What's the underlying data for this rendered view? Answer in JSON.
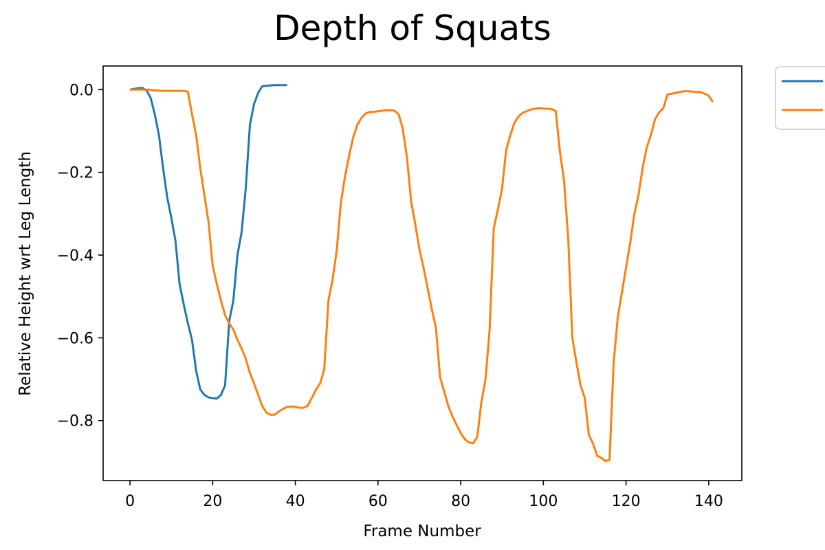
{
  "chart_data": {
    "type": "line",
    "title": "Depth of Squats",
    "xlabel": "Frame Number",
    "ylabel": "Relative Height wrt Leg Length",
    "xlim": [
      -6.5,
      148
    ],
    "ylim": [
      -0.945,
      0.057
    ],
    "xticks": [
      0,
      20,
      40,
      60,
      80,
      100,
      120,
      140
    ],
    "yticks": [
      0.0,
      -0.2,
      -0.4,
      -0.6,
      -0.8
    ],
    "ytick_labels": [
      "0.0",
      "−0.2",
      "−0.4",
      "−0.6",
      "−0.8"
    ],
    "grid": false,
    "legend": "outside-top-right",
    "series": [
      {
        "color": "#1f77b4",
        "points": [
          [
            0,
            0.0
          ],
          [
            1,
            0.002
          ],
          [
            2,
            0.003
          ],
          [
            3,
            0.004
          ],
          [
            4,
            -0.002
          ],
          [
            5,
            -0.02
          ],
          [
            6,
            -0.06
          ],
          [
            7,
            -0.11
          ],
          [
            8,
            -0.19
          ],
          [
            9,
            -0.26
          ],
          [
            10,
            -0.31
          ],
          [
            11,
            -0.365
          ],
          [
            12,
            -0.47
          ],
          [
            13,
            -0.52
          ],
          [
            14,
            -0.565
          ],
          [
            15,
            -0.605
          ],
          [
            16,
            -0.68
          ],
          [
            17,
            -0.725
          ],
          [
            18,
            -0.738
          ],
          [
            19,
            -0.744
          ],
          [
            20,
            -0.746
          ],
          [
            21,
            -0.747
          ],
          [
            22,
            -0.738
          ],
          [
            23,
            -0.715
          ],
          [
            24,
            -0.56
          ],
          [
            25,
            -0.51
          ],
          [
            26,
            -0.4
          ],
          [
            27,
            -0.345
          ],
          [
            28,
            -0.24
          ],
          [
            29,
            -0.085
          ],
          [
            30,
            -0.035
          ],
          [
            31,
            -0.008
          ],
          [
            32,
            0.008
          ],
          [
            33,
            0.009
          ],
          [
            34,
            0.01
          ],
          [
            35,
            0.011
          ],
          [
            36,
            0.011
          ],
          [
            37,
            0.011
          ],
          [
            38,
            0.011
          ]
        ]
      },
      {
        "color": "#ff7f0e",
        "points": [
          [
            0,
            0.0
          ],
          [
            2,
            0.0
          ],
          [
            4,
            0.0
          ],
          [
            6,
            -0.002
          ],
          [
            8,
            -0.003
          ],
          [
            10,
            -0.003
          ],
          [
            12,
            -0.003
          ],
          [
            13,
            -0.003
          ],
          [
            14,
            -0.005
          ],
          [
            15,
            -0.06
          ],
          [
            16,
            -0.11
          ],
          [
            17,
            -0.19
          ],
          [
            18,
            -0.255
          ],
          [
            19,
            -0.32
          ],
          [
            20,
            -0.425
          ],
          [
            21,
            -0.47
          ],
          [
            22,
            -0.51
          ],
          [
            23,
            -0.545
          ],
          [
            24,
            -0.565
          ],
          [
            25,
            -0.58
          ],
          [
            26,
            -0.605
          ],
          [
            27,
            -0.625
          ],
          [
            28,
            -0.65
          ],
          [
            29,
            -0.685
          ],
          [
            30,
            -0.71
          ],
          [
            31,
            -0.738
          ],
          [
            32,
            -0.765
          ],
          [
            33,
            -0.781
          ],
          [
            34,
            -0.786
          ],
          [
            35,
            -0.786
          ],
          [
            36,
            -0.778
          ],
          [
            37,
            -0.772
          ],
          [
            38,
            -0.767
          ],
          [
            39,
            -0.766
          ],
          [
            40,
            -0.767
          ],
          [
            41,
            -0.769
          ],
          [
            42,
            -0.769
          ],
          [
            43,
            -0.764
          ],
          [
            44,
            -0.745
          ],
          [
            45,
            -0.725
          ],
          [
            46,
            -0.71
          ],
          [
            47,
            -0.675
          ],
          [
            48,
            -0.51
          ],
          [
            49,
            -0.46
          ],
          [
            50,
            -0.39
          ],
          [
            51,
            -0.275
          ],
          [
            52,
            -0.21
          ],
          [
            53,
            -0.16
          ],
          [
            54,
            -0.115
          ],
          [
            55,
            -0.085
          ],
          [
            56,
            -0.068
          ],
          [
            57,
            -0.058
          ],
          [
            58,
            -0.054
          ],
          [
            59,
            -0.054
          ],
          [
            60,
            -0.052
          ],
          [
            61,
            -0.051
          ],
          [
            62,
            -0.05
          ],
          [
            63,
            -0.05
          ],
          [
            64,
            -0.051
          ],
          [
            65,
            -0.06
          ],
          [
            66,
            -0.095
          ],
          [
            67,
            -0.165
          ],
          [
            68,
            -0.27
          ],
          [
            69,
            -0.325
          ],
          [
            70,
            -0.385
          ],
          [
            71,
            -0.43
          ],
          [
            72,
            -0.48
          ],
          [
            73,
            -0.53
          ],
          [
            74,
            -0.575
          ],
          [
            75,
            -0.695
          ],
          [
            76,
            -0.73
          ],
          [
            77,
            -0.765
          ],
          [
            78,
            -0.79
          ],
          [
            79,
            -0.81
          ],
          [
            80,
            -0.83
          ],
          [
            81,
            -0.845
          ],
          [
            82,
            -0.853
          ],
          [
            83,
            -0.855
          ],
          [
            84,
            -0.84
          ],
          [
            85,
            -0.755
          ],
          [
            86,
            -0.7
          ],
          [
            87,
            -0.58
          ],
          [
            88,
            -0.335
          ],
          [
            89,
            -0.29
          ],
          [
            90,
            -0.24
          ],
          [
            91,
            -0.145
          ],
          [
            92,
            -0.11
          ],
          [
            93,
            -0.08
          ],
          [
            94,
            -0.065
          ],
          [
            95,
            -0.056
          ],
          [
            96,
            -0.052
          ],
          [
            97,
            -0.048
          ],
          [
            98,
            -0.046
          ],
          [
            99,
            -0.045
          ],
          [
            100,
            -0.046
          ],
          [
            101,
            -0.046
          ],
          [
            102,
            -0.047
          ],
          [
            103,
            -0.052
          ],
          [
            104,
            -0.15
          ],
          [
            105,
            -0.22
          ],
          [
            106,
            -0.36
          ],
          [
            107,
            -0.6
          ],
          [
            108,
            -0.66
          ],
          [
            109,
            -0.715
          ],
          [
            110,
            -0.745
          ],
          [
            111,
            -0.835
          ],
          [
            112,
            -0.855
          ],
          [
            113,
            -0.885
          ],
          [
            114,
            -0.89
          ],
          [
            115,
            -0.898
          ],
          [
            116,
            -0.895
          ],
          [
            117,
            -0.66
          ],
          [
            118,
            -0.55
          ],
          [
            119,
            -0.49
          ],
          [
            120,
            -0.43
          ],
          [
            121,
            -0.37
          ],
          [
            122,
            -0.3
          ],
          [
            123,
            -0.255
          ],
          [
            124,
            -0.19
          ],
          [
            125,
            -0.14
          ],
          [
            126,
            -0.11
          ],
          [
            127,
            -0.072
          ],
          [
            128,
            -0.055
          ],
          [
            129,
            -0.045
          ],
          [
            130,
            -0.012
          ],
          [
            131,
            -0.01
          ],
          [
            132,
            -0.008
          ],
          [
            133,
            -0.006
          ],
          [
            134,
            -0.004
          ],
          [
            135,
            -0.004
          ],
          [
            136,
            -0.005
          ],
          [
            137,
            -0.006
          ],
          [
            138,
            -0.006
          ],
          [
            139,
            -0.01
          ],
          [
            140,
            -0.015
          ],
          [
            141,
            -0.03
          ]
        ]
      }
    ]
  }
}
